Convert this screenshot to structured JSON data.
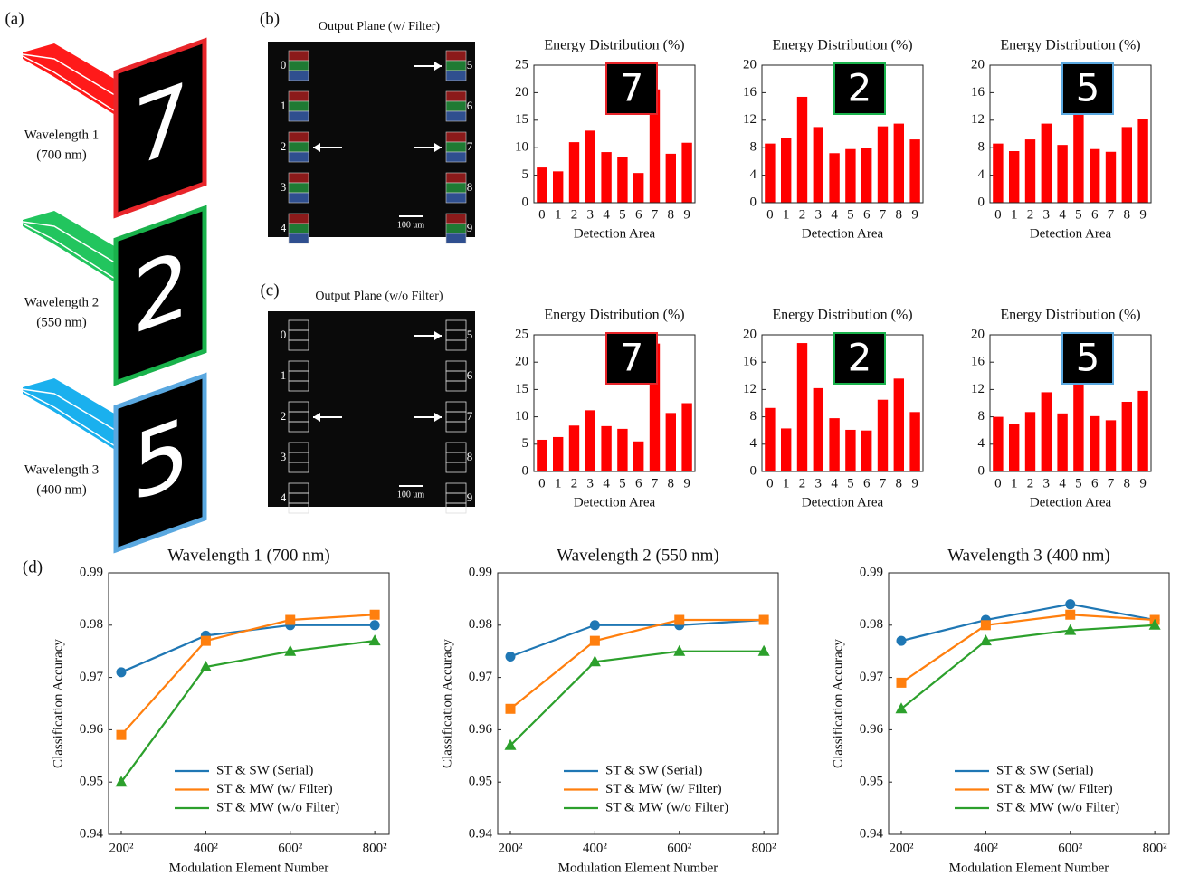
{
  "panel_labels": [
    "(a)",
    "(b)",
    "(c)",
    "(d)"
  ],
  "wavelengths": [
    {
      "label": "Wavelength 1",
      "sub": "(700 nm)",
      "color": "#ff1a1a",
      "frame": "#e8252a",
      "digit": "7"
    },
    {
      "label": "Wavelength 2",
      "sub": "(550 nm)",
      "color": "#22c55e",
      "frame": "#19b24b",
      "digit": "2"
    },
    {
      "label": "Wavelength 3",
      "sub": "(400 nm)",
      "color": "#1ab0ee",
      "frame": "#5aa8e0",
      "digit": "5"
    }
  ],
  "detector_labels": [
    "0",
    "1",
    "2",
    "3",
    "4",
    "5",
    "6",
    "7",
    "8",
    "9"
  ],
  "output_planes": [
    {
      "title": "Output Plane (w/ Filter)",
      "filtered": true,
      "scale_label": "100 um",
      "arrow_detectors": [
        2,
        5,
        7
      ]
    },
    {
      "title": "Output Plane (w/o Filter)",
      "filtered": false,
      "scale_label": "100 um",
      "arrow_detectors": [
        2,
        5,
        7
      ]
    }
  ],
  "chart_data": [
    {
      "type": "bar",
      "title": "Energy Distribution (%)",
      "x_label": "Detection Area",
      "categories": [
        "0",
        "1",
        "2",
        "3",
        "4",
        "5",
        "6",
        "7",
        "8",
        "9"
      ],
      "values": [
        6.4,
        5.7,
        11,
        13.1,
        9.2,
        8.3,
        5.4,
        20.6,
        8.9,
        10.9
      ],
      "color": "#ff0000",
      "ylim": [
        0,
        25
      ],
      "yticks": [
        0,
        5,
        10,
        15,
        20,
        25
      ],
      "inset": {
        "text": "7",
        "border": "#e8252a"
      }
    },
    {
      "type": "bar",
      "title": "Energy Distribution (%)",
      "x_label": "Detection Area",
      "categories": [
        "0",
        "1",
        "2",
        "3",
        "4",
        "5",
        "6",
        "7",
        "8",
        "9"
      ],
      "values": [
        8.6,
        9.4,
        15.4,
        11,
        7.2,
        7.8,
        8,
        11.1,
        11.5,
        9.2
      ],
      "color": "#ff0000",
      "ylim": [
        0,
        20
      ],
      "yticks": [
        0,
        4,
        8,
        12,
        16,
        20
      ],
      "inset": {
        "text": "2",
        "border": "#19b24b"
      }
    },
    {
      "type": "bar",
      "title": "Energy Distribution (%)",
      "x_label": "Detection Area",
      "categories": [
        "0",
        "1",
        "2",
        "3",
        "4",
        "5",
        "6",
        "7",
        "8",
        "9"
      ],
      "values": [
        8.6,
        7.5,
        9.2,
        11.5,
        8.4,
        16.3,
        7.8,
        7.4,
        11,
        12.2
      ],
      "color": "#ff0000",
      "ylim": [
        0,
        20
      ],
      "yticks": [
        0,
        4,
        8,
        12,
        16,
        20
      ],
      "inset": {
        "text": "5",
        "border": "#5aa8e0"
      }
    },
    {
      "type": "bar",
      "title": "Energy Distribution (%)",
      "x_label": "Detection Area",
      "categories": [
        "0",
        "1",
        "2",
        "3",
        "4",
        "5",
        "6",
        "7",
        "8",
        "9"
      ],
      "values": [
        5.8,
        6.3,
        8.4,
        11.2,
        8.3,
        7.8,
        5.5,
        23.4,
        10.7,
        12.5
      ],
      "color": "#ff0000",
      "ylim": [
        0,
        25
      ],
      "yticks": [
        0,
        5,
        10,
        15,
        20,
        25
      ],
      "inset": {
        "text": "7",
        "border": "#e8252a"
      }
    },
    {
      "type": "bar",
      "title": "Energy Distribution (%)",
      "x_label": "Detection Area",
      "categories": [
        "0",
        "1",
        "2",
        "3",
        "4",
        "5",
        "6",
        "7",
        "8",
        "9"
      ],
      "values": [
        9.3,
        6.3,
        18.8,
        12.2,
        7.8,
        6.1,
        6,
        10.5,
        13.6,
        8.7
      ],
      "color": "#ff0000",
      "ylim": [
        0,
        20
      ],
      "yticks": [
        0,
        4,
        8,
        12,
        16,
        20
      ],
      "inset": {
        "text": "2",
        "border": "#19b24b"
      }
    },
    {
      "type": "bar",
      "title": "Energy Distribution (%)",
      "x_label": "Detection Area",
      "categories": [
        "0",
        "1",
        "2",
        "3",
        "4",
        "5",
        "6",
        "7",
        "8",
        "9"
      ],
      "values": [
        8,
        6.9,
        8.7,
        11.6,
        8.5,
        17.6,
        8.1,
        7.5,
        10.2,
        11.8
      ],
      "color": "#ff0000",
      "ylim": [
        0,
        20
      ],
      "yticks": [
        0,
        4,
        8,
        12,
        16,
        20
      ],
      "inset": {
        "text": "5",
        "border": "#5aa8e0"
      }
    },
    {
      "type": "line",
      "title": "Wavelength 1 (700 nm)",
      "x_label": "Modulation Element Number",
      "y_label": "Classification Accuracy",
      "x": [
        200,
        400,
        600,
        800
      ],
      "xlim": [
        170,
        834
      ],
      "xticks": [
        {
          "value": 200,
          "label": "200²"
        },
        {
          "value": 400,
          "label": "400²"
        },
        {
          "value": 600,
          "label": "600²"
        },
        {
          "value": 800,
          "label": "800²"
        }
      ],
      "ylim": [
        0.94,
        0.99
      ],
      "yticks": [
        0.94,
        0.95,
        0.96,
        0.97,
        0.98,
        0.99
      ],
      "series": [
        {
          "name": "ST & SW (Serial)",
          "color": "#1f77b4",
          "marker": "circle",
          "values": [
            0.971,
            0.978,
            0.98,
            0.98
          ]
        },
        {
          "name": "ST & MW (w/ Filter)",
          "color": "#ff7f0e",
          "marker": "square",
          "values": [
            0.959,
            0.977,
            0.981,
            0.982
          ]
        },
        {
          "name": "ST & MW (w/o Filter)",
          "color": "#2ca02c",
          "marker": "triangle",
          "values": [
            0.95,
            0.972,
            0.975,
            0.977
          ]
        }
      ]
    },
    {
      "type": "line",
      "title": "Wavelength 2 (550 nm)",
      "x_label": "Modulation Element Number",
      "y_label": "Classification Accuracy",
      "x": [
        200,
        400,
        600,
        800
      ],
      "xlim": [
        170,
        834
      ],
      "xticks": [
        {
          "value": 200,
          "label": "200²"
        },
        {
          "value": 400,
          "label": "400²"
        },
        {
          "value": 600,
          "label": "600²"
        },
        {
          "value": 800,
          "label": "800²"
        }
      ],
      "ylim": [
        0.94,
        0.99
      ],
      "yticks": [
        0.94,
        0.95,
        0.96,
        0.97,
        0.98,
        0.99
      ],
      "series": [
        {
          "name": "ST & SW (Serial)",
          "color": "#1f77b4",
          "marker": "circle",
          "values": [
            0.974,
            0.98,
            0.98,
            0.981
          ]
        },
        {
          "name": "ST & MW (w/ Filter)",
          "color": "#ff7f0e",
          "marker": "square",
          "values": [
            0.964,
            0.977,
            0.981,
            0.981
          ]
        },
        {
          "name": "ST & MW (w/o Filter)",
          "color": "#2ca02c",
          "marker": "triangle",
          "values": [
            0.957,
            0.973,
            0.975,
            0.975
          ]
        }
      ]
    },
    {
      "type": "line",
      "title": "Wavelength 3 (400 nm)",
      "x_label": "Modulation Element Number",
      "y_label": "Classification Accuracy",
      "x": [
        200,
        400,
        600,
        800
      ],
      "xlim": [
        170,
        834
      ],
      "xticks": [
        {
          "value": 200,
          "label": "200²"
        },
        {
          "value": 400,
          "label": "400²"
        },
        {
          "value": 600,
          "label": "600²"
        },
        {
          "value": 800,
          "label": "800²"
        }
      ],
      "ylim": [
        0.94,
        0.99
      ],
      "yticks": [
        0.94,
        0.95,
        0.96,
        0.97,
        0.98,
        0.99
      ],
      "series": [
        {
          "name": "ST & SW (Serial)",
          "color": "#1f77b4",
          "marker": "circle",
          "values": [
            0.977,
            0.981,
            0.984,
            0.981
          ]
        },
        {
          "name": "ST & MW (w/ Filter)",
          "color": "#ff7f0e",
          "marker": "square",
          "values": [
            0.969,
            0.98,
            0.982,
            0.981
          ]
        },
        {
          "name": "ST & MW (w/o Filter)",
          "color": "#2ca02c",
          "marker": "triangle",
          "values": [
            0.964,
            0.977,
            0.979,
            0.98
          ]
        }
      ]
    }
  ]
}
